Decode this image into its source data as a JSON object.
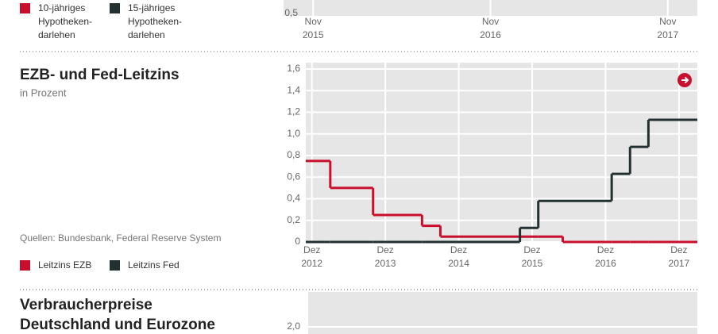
{
  "chart_data": [
    {
      "type": "line",
      "series": [
        {
          "name": "10-jähriges Hypotheken-darlehen",
          "color": "#c8102e"
        },
        {
          "name": "15-jähriges Hypotheken-darlehen",
          "color": "#223030"
        }
      ],
      "yticks": [
        {
          "value": 0.5,
          "label": "0,5"
        }
      ],
      "xlim": [
        "2015-09",
        "2018-01"
      ],
      "xticks": [
        {
          "value": "2015-11",
          "label": "Nov 2015"
        },
        {
          "value": "2016-11",
          "label": "Nov 2016"
        },
        {
          "value": "2017-11",
          "label": "Nov 2017"
        }
      ]
    },
    {
      "type": "step",
      "title": "EZB- und Fed-Leitzins",
      "subtitle": "in Prozent",
      "source": "Quellen: Bundesbank, Federal Reserve System",
      "x": [
        "2012-11",
        "2013-03",
        "2013-10",
        "2014-06",
        "2014-09",
        "2015-10",
        "2016-01",
        "2016-05",
        "2017-01",
        "2017-04",
        "2017-07"
      ],
      "series": [
        {
          "name": "Leitzins EZB",
          "color": "#c8102e",
          "values": [
            0.75,
            0.5,
            0.25,
            0.15,
            0.05,
            0.05,
            0.05,
            0,
            0,
            0,
            0
          ]
        },
        {
          "name": "Leitzins Fed",
          "color": "#223030",
          "values": [
            0,
            0,
            0,
            0,
            0,
            0.13,
            0.38,
            0.38,
            0.63,
            0.88,
            1.13
          ]
        }
      ],
      "xlim": [
        "2012-11",
        "2018-03"
      ],
      "ylim": [
        0,
        1.6
      ],
      "yticks": [
        0,
        {
          "value": 0.2,
          "label": "0,2"
        },
        {
          "value": 0.4,
          "label": "0,4"
        },
        {
          "value": 0.6,
          "label": "0,6"
        },
        {
          "value": 0.8,
          "label": "0,8"
        },
        {
          "value": 1.0,
          "label": "1,0"
        },
        {
          "value": 1.2,
          "label": "1,2"
        },
        {
          "value": 1.4,
          "label": "1,4"
        },
        {
          "value": 1.6,
          "label": "1,6"
        }
      ],
      "xticks": [
        {
          "value": "2012-12",
          "label": "Dez 2012"
        },
        {
          "value": "2013-12",
          "label": "Dez 2013"
        },
        {
          "value": "2014-12",
          "label": "Dez 2014"
        },
        {
          "value": "2015-12",
          "label": "Dez 2015"
        },
        {
          "value": "2016-12",
          "label": "Dez 2016"
        },
        {
          "value": "2017-12",
          "label": "Dez 2017"
        }
      ],
      "grid": true
    },
    {
      "type": "bar",
      "title": "Verbraucherpreise Deutschland und Eurozone",
      "yticks": [
        {
          "value": 2.0,
          "label": "2,0"
        }
      ]
    }
  ]
}
